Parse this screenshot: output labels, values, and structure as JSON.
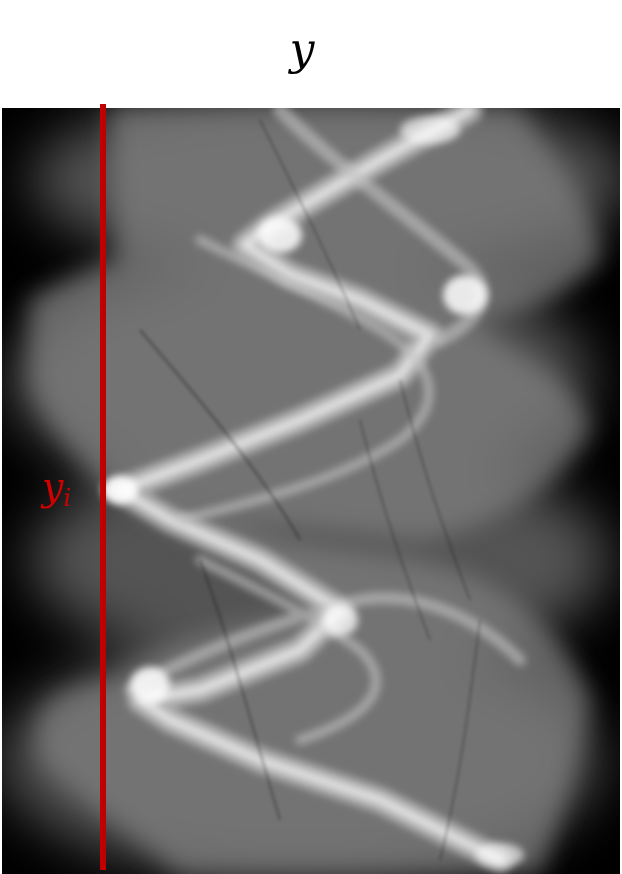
{
  "title": "y",
  "marker": {
    "label_main": "y",
    "label_sub": "i",
    "color": "#d00000"
  },
  "colors": {
    "background": "#000000",
    "band": "#ffffff",
    "line": "#c00000"
  }
}
